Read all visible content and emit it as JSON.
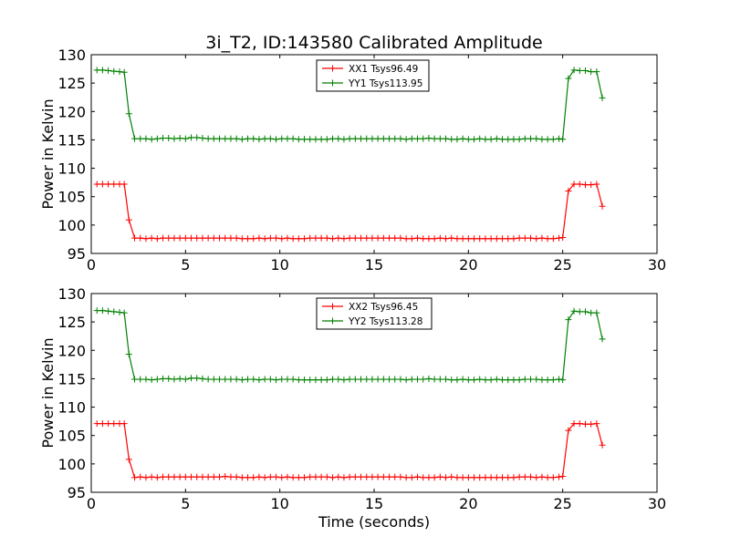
{
  "chart_data": {
    "title": "3i_T2, ID:143580 Calibrated Amplitude",
    "xlabel": "Time (seconds)",
    "type": "line",
    "subplots": [
      {
        "ylabel": "Power in Kelvin",
        "xlim": [
          0,
          30
        ],
        "ylim": [
          95,
          130
        ],
        "xticks": [
          0,
          5,
          10,
          15,
          20,
          25,
          30
        ],
        "yticks": [
          95,
          100,
          105,
          110,
          115,
          120,
          125,
          130
        ],
        "legend_position": "top-center",
        "series": [
          {
            "name": "XX1 Tsys96.49",
            "color": "#ff0000",
            "x": [
              0.3,
              0.6,
              0.9,
              1.2,
              1.5,
              1.75,
              2.0,
              2.3,
              2.6,
              2.9,
              3.2,
              3.5,
              3.8,
              4.1,
              4.4,
              4.7,
              5.0,
              5.3,
              5.6,
              5.9,
              6.2,
              6.5,
              6.8,
              7.1,
              7.4,
              7.7,
              8.0,
              8.3,
              8.6,
              8.9,
              9.2,
              9.5,
              9.8,
              10.1,
              10.4,
              10.7,
              11.0,
              11.3,
              11.6,
              11.9,
              12.2,
              12.5,
              12.8,
              13.1,
              13.4,
              13.7,
              14.0,
              14.3,
              14.6,
              14.9,
              15.2,
              15.5,
              15.8,
              16.1,
              16.4,
              16.7,
              17.0,
              17.3,
              17.6,
              17.9,
              18.2,
              18.5,
              18.8,
              19.1,
              19.4,
              19.7,
              20.0,
              20.3,
              20.6,
              20.9,
              21.2,
              21.5,
              21.8,
              22.1,
              22.4,
              22.7,
              23.0,
              23.3,
              23.6,
              23.9,
              24.2,
              24.5,
              24.8,
              25.0,
              25.3,
              25.6,
              25.9,
              26.2,
              26.5,
              26.8,
              27.1
            ],
            "y": [
              107.2,
              107.2,
              107.2,
              107.2,
              107.2,
              107.2,
              100.9,
              97.7,
              97.7,
              97.6,
              97.7,
              97.6,
              97.7,
              97.7,
              97.7,
              97.7,
              97.7,
              97.7,
              97.7,
              97.7,
              97.7,
              97.7,
              97.7,
              97.7,
              97.7,
              97.7,
              97.6,
              97.6,
              97.6,
              97.7,
              97.6,
              97.7,
              97.7,
              97.6,
              97.7,
              97.6,
              97.6,
              97.6,
              97.7,
              97.7,
              97.7,
              97.7,
              97.6,
              97.7,
              97.6,
              97.7,
              97.7,
              97.7,
              97.7,
              97.7,
              97.7,
              97.7,
              97.7,
              97.7,
              97.7,
              97.6,
              97.6,
              97.7,
              97.6,
              97.6,
              97.6,
              97.7,
              97.6,
              97.7,
              97.6,
              97.6,
              97.6,
              97.6,
              97.6,
              97.6,
              97.6,
              97.6,
              97.6,
              97.6,
              97.6,
              97.7,
              97.7,
              97.7,
              97.6,
              97.7,
              97.6,
              97.6,
              97.7,
              97.8,
              106.0,
              107.2,
              107.2,
              107.1,
              107.1,
              107.2,
              103.3
            ]
          },
          {
            "name": "YY1 Tsys113.95",
            "color": "#008000",
            "x": [
              0.3,
              0.6,
              0.9,
              1.2,
              1.5,
              1.75,
              2.0,
              2.3,
              2.6,
              2.9,
              3.2,
              3.5,
              3.8,
              4.1,
              4.4,
              4.7,
              5.0,
              5.3,
              5.6,
              5.9,
              6.2,
              6.5,
              6.8,
              7.1,
              7.4,
              7.7,
              8.0,
              8.3,
              8.6,
              8.9,
              9.2,
              9.5,
              9.8,
              10.1,
              10.4,
              10.7,
              11.0,
              11.3,
              11.6,
              11.9,
              12.2,
              12.5,
              12.8,
              13.1,
              13.4,
              13.7,
              14.0,
              14.3,
              14.6,
              14.9,
              15.2,
              15.5,
              15.8,
              16.1,
              16.4,
              16.7,
              17.0,
              17.3,
              17.6,
              17.9,
              18.2,
              18.5,
              18.8,
              19.1,
              19.4,
              19.7,
              20.0,
              20.3,
              20.6,
              20.9,
              21.2,
              21.5,
              21.8,
              22.1,
              22.4,
              22.7,
              23.0,
              23.3,
              23.6,
              23.9,
              24.2,
              24.5,
              24.8,
              25.0,
              25.3,
              25.6,
              25.9,
              26.2,
              26.5,
              26.8,
              27.1
            ],
            "y": [
              127.3,
              127.3,
              127.2,
              127.1,
              127.0,
              126.9,
              119.6,
              115.2,
              115.2,
              115.2,
              115.1,
              115.2,
              115.3,
              115.3,
              115.2,
              115.3,
              115.2,
              115.4,
              115.4,
              115.3,
              115.2,
              115.2,
              115.2,
              115.2,
              115.2,
              115.2,
              115.1,
              115.2,
              115.2,
              115.1,
              115.2,
              115.2,
              115.1,
              115.2,
              115.2,
              115.2,
              115.1,
              115.1,
              115.1,
              115.1,
              115.1,
              115.1,
              115.2,
              115.2,
              115.1,
              115.2,
              115.2,
              115.2,
              115.2,
              115.2,
              115.2,
              115.2,
              115.2,
              115.2,
              115.2,
              115.1,
              115.2,
              115.2,
              115.2,
              115.3,
              115.2,
              115.2,
              115.2,
              115.1,
              115.1,
              115.2,
              115.1,
              115.1,
              115.2,
              115.1,
              115.1,
              115.2,
              115.1,
              115.1,
              115.1,
              115.1,
              115.2,
              115.2,
              115.2,
              115.1,
              115.1,
              115.1,
              115.2,
              115.1,
              125.8,
              127.3,
              127.2,
              127.2,
              127.0,
              127.0,
              122.4
            ]
          }
        ]
      },
      {
        "ylabel": "Power in Kelvin",
        "xlim": [
          0,
          30
        ],
        "ylim": [
          95,
          130
        ],
        "xticks": [
          0,
          5,
          10,
          15,
          20,
          25,
          30
        ],
        "yticks": [
          95,
          100,
          105,
          110,
          115,
          120,
          125,
          130
        ],
        "legend_position": "top-center",
        "series": [
          {
            "name": "XX2 Tsys96.45",
            "color": "#ff0000",
            "x": [
              0.3,
              0.6,
              0.9,
              1.2,
              1.5,
              1.75,
              2.0,
              2.3,
              2.6,
              2.9,
              3.2,
              3.5,
              3.8,
              4.1,
              4.4,
              4.7,
              5.0,
              5.3,
              5.6,
              5.9,
              6.2,
              6.5,
              6.8,
              7.1,
              7.4,
              7.7,
              8.0,
              8.3,
              8.6,
              8.9,
              9.2,
              9.5,
              9.8,
              10.1,
              10.4,
              10.7,
              11.0,
              11.3,
              11.6,
              11.9,
              12.2,
              12.5,
              12.8,
              13.1,
              13.4,
              13.7,
              14.0,
              14.3,
              14.6,
              14.9,
              15.2,
              15.5,
              15.8,
              16.1,
              16.4,
              16.7,
              17.0,
              17.3,
              17.6,
              17.9,
              18.2,
              18.5,
              18.8,
              19.1,
              19.4,
              19.7,
              20.0,
              20.3,
              20.6,
              20.9,
              21.2,
              21.5,
              21.8,
              22.1,
              22.4,
              22.7,
              23.0,
              23.3,
              23.6,
              23.9,
              24.2,
              24.5,
              24.8,
              25.0,
              25.3,
              25.6,
              25.9,
              26.2,
              26.5,
              26.8,
              27.1
            ],
            "y": [
              107.1,
              107.1,
              107.1,
              107.1,
              107.1,
              107.1,
              100.8,
              97.6,
              97.7,
              97.6,
              97.7,
              97.6,
              97.7,
              97.7,
              97.7,
              97.7,
              97.7,
              97.7,
              97.7,
              97.7,
              97.7,
              97.7,
              97.7,
              97.8,
              97.7,
              97.7,
              97.6,
              97.6,
              97.6,
              97.7,
              97.6,
              97.7,
              97.7,
              97.6,
              97.7,
              97.6,
              97.6,
              97.6,
              97.7,
              97.7,
              97.7,
              97.7,
              97.6,
              97.7,
              97.6,
              97.7,
              97.7,
              97.7,
              97.7,
              97.7,
              97.7,
              97.7,
              97.7,
              97.7,
              97.7,
              97.6,
              97.6,
              97.7,
              97.6,
              97.6,
              97.6,
              97.7,
              97.6,
              97.7,
              97.6,
              97.6,
              97.6,
              97.6,
              97.6,
              97.6,
              97.6,
              97.6,
              97.6,
              97.6,
              97.6,
              97.7,
              97.7,
              97.7,
              97.6,
              97.7,
              97.6,
              97.6,
              97.7,
              97.8,
              105.9,
              107.1,
              107.1,
              107.0,
              107.0,
              107.1,
              103.3
            ]
          },
          {
            "name": "YY2 Tsys113.28",
            "color": "#008000",
            "x": [
              0.3,
              0.6,
              0.9,
              1.2,
              1.5,
              1.75,
              2.0,
              2.3,
              2.6,
              2.9,
              3.2,
              3.5,
              3.8,
              4.1,
              4.4,
              4.7,
              5.0,
              5.3,
              5.6,
              5.9,
              6.2,
              6.5,
              6.8,
              7.1,
              7.4,
              7.7,
              8.0,
              8.3,
              8.6,
              8.9,
              9.2,
              9.5,
              9.8,
              10.1,
              10.4,
              10.7,
              11.0,
              11.3,
              11.6,
              11.9,
              12.2,
              12.5,
              12.8,
              13.1,
              13.4,
              13.7,
              14.0,
              14.3,
              14.6,
              14.9,
              15.2,
              15.5,
              15.8,
              16.1,
              16.4,
              16.7,
              17.0,
              17.3,
              17.6,
              17.9,
              18.2,
              18.5,
              18.8,
              19.1,
              19.4,
              19.7,
              20.0,
              20.3,
              20.6,
              20.9,
              21.2,
              21.5,
              21.8,
              22.1,
              22.4,
              22.7,
              23.0,
              23.3,
              23.6,
              23.9,
              24.2,
              24.5,
              24.8,
              25.0,
              25.3,
              25.6,
              25.9,
              26.2,
              26.5,
              26.8,
              27.1
            ],
            "y": [
              127.0,
              127.0,
              126.9,
              126.8,
              126.7,
              126.6,
              119.3,
              114.9,
              114.9,
              114.9,
              114.8,
              114.9,
              115.0,
              115.0,
              114.9,
              115.0,
              114.9,
              115.1,
              115.1,
              115.0,
              114.9,
              114.9,
              114.9,
              114.9,
              114.9,
              114.9,
              114.8,
              114.9,
              114.9,
              114.8,
              114.9,
              114.9,
              114.8,
              114.9,
              114.9,
              114.9,
              114.8,
              114.8,
              114.8,
              114.8,
              114.8,
              114.8,
              114.9,
              114.9,
              114.8,
              114.9,
              114.9,
              114.9,
              114.9,
              114.9,
              114.9,
              114.9,
              114.9,
              114.9,
              114.9,
              114.8,
              114.9,
              114.9,
              114.9,
              115.0,
              114.9,
              114.9,
              114.9,
              114.8,
              114.8,
              114.9,
              114.8,
              114.8,
              114.9,
              114.8,
              114.8,
              114.9,
              114.8,
              114.8,
              114.8,
              114.8,
              114.9,
              114.9,
              114.9,
              114.8,
              114.8,
              114.8,
              114.9,
              114.8,
              125.4,
              126.9,
              126.8,
              126.8,
              126.6,
              126.6,
              122.0
            ]
          }
        ]
      }
    ]
  }
}
